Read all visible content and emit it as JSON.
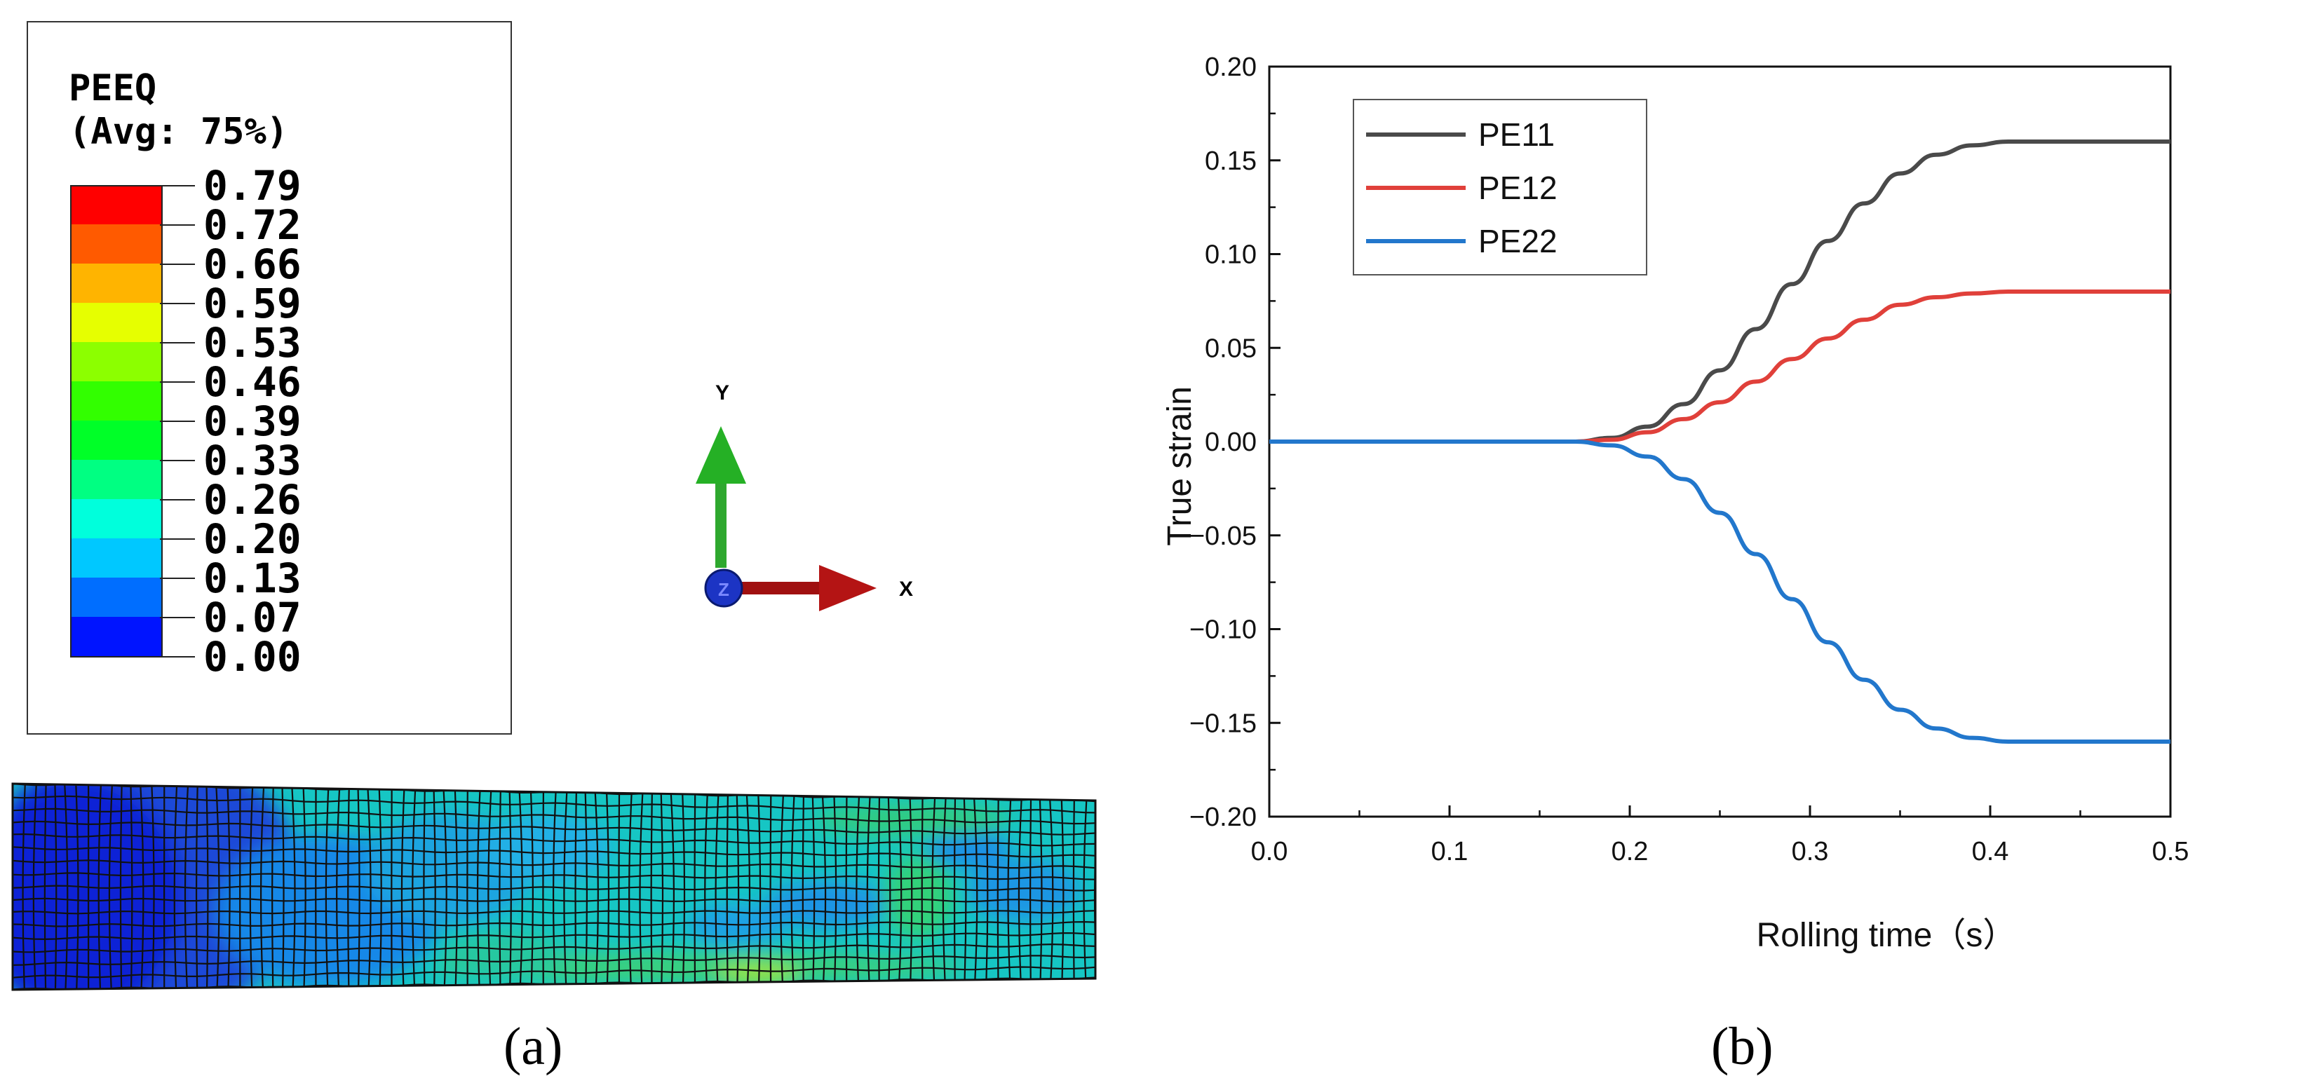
{
  "panel_a": {
    "legend_title": "PEEQ",
    "legend_subtitle": "(Avg: 75%)",
    "legend_ticks": [
      "0.79",
      "0.72",
      "0.66",
      "0.59",
      "0.53",
      "0.46",
      "0.39",
      "0.33",
      "0.26",
      "0.20",
      "0.13",
      "0.07",
      "0.00"
    ],
    "legend_colors": [
      "#ff0000",
      "#ff5a00",
      "#ffb400",
      "#e6ff00",
      "#8cff00",
      "#32ff00",
      "#00ff28",
      "#00ff82",
      "#00ffdc",
      "#00c8ff",
      "#006eff",
      "#0014ff"
    ],
    "triad": {
      "y_label": "Y",
      "x_label": "X",
      "z_label": "Z",
      "y_color": "#22b522",
      "x_color": "#b01010",
      "z_color": "#1030c0"
    },
    "caption": "(a)"
  },
  "panel_b": {
    "caption": "(b)"
  },
  "chart_data": {
    "type": "line",
    "title": "",
    "xlabel": "Rolling time（s）",
    "ylabel": "True strain",
    "xlim": [
      0.0,
      0.5
    ],
    "ylim": [
      -0.2,
      0.2
    ],
    "x_ticks": [
      0.0,
      0.1,
      0.2,
      0.3,
      0.4,
      0.5
    ],
    "x_tick_labels": [
      "0.0",
      "0.1",
      "0.2",
      "0.3",
      "0.4",
      "0.5"
    ],
    "y_ticks": [
      0.2,
      0.15,
      0.1,
      0.05,
      0.0,
      -0.05,
      -0.1,
      -0.15,
      -0.2
    ],
    "y_tick_labels": [
      "0.20",
      "0.15",
      "0.10",
      "0.05",
      "0.00",
      "−0.05",
      "−0.10",
      "−0.15",
      "−0.20"
    ],
    "legend_position": "top-left",
    "x": [
      0.0,
      0.05,
      0.1,
      0.15,
      0.17,
      0.19,
      0.21,
      0.23,
      0.25,
      0.27,
      0.29,
      0.31,
      0.33,
      0.35,
      0.37,
      0.39,
      0.41,
      0.43,
      0.45,
      0.5
    ],
    "series": [
      {
        "name": "PE11",
        "color": "#4a4a4a",
        "values": [
          0,
          0,
          0,
          0,
          0,
          0.002,
          0.008,
          0.02,
          0.038,
          0.06,
          0.084,
          0.107,
          0.127,
          0.143,
          0.153,
          0.158,
          0.16,
          0.16,
          0.16,
          0.16
        ]
      },
      {
        "name": "PE12",
        "color": "#e0403a",
        "values": [
          0,
          0,
          0,
          0,
          0,
          0.001,
          0.005,
          0.012,
          0.021,
          0.032,
          0.044,
          0.055,
          0.065,
          0.073,
          0.077,
          0.079,
          0.08,
          0.08,
          0.08,
          0.08
        ]
      },
      {
        "name": "PE22",
        "color": "#2277cc",
        "values": [
          0,
          0,
          0,
          0,
          0,
          -0.002,
          -0.008,
          -0.02,
          -0.038,
          -0.06,
          -0.084,
          -0.107,
          -0.127,
          -0.143,
          -0.153,
          -0.158,
          -0.16,
          -0.16,
          -0.16,
          -0.16
        ]
      }
    ]
  }
}
